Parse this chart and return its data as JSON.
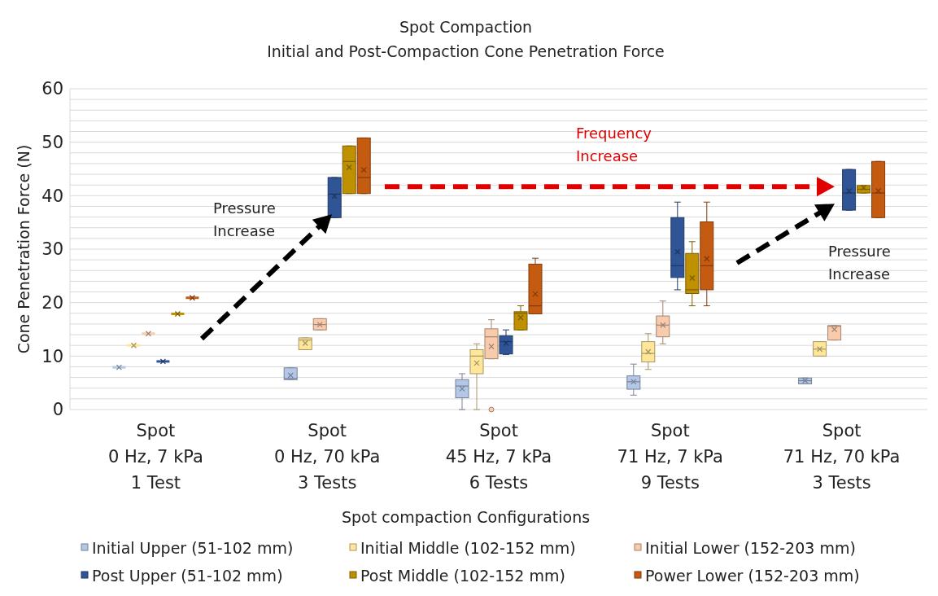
{
  "chart_data": {
    "type": "box",
    "title": "Spot Compaction",
    "subtitle": "Initial and Post-Compaction Cone Penetration Force",
    "xlabel": "Spot compaction Configurations",
    "ylabel": "Cone Penetration Force (N)",
    "categories": [
      "Spot\n0 Hz, 7 kPa\n1 Test",
      "Spot\n0 Hz, 70 kPa\n3 Tests",
      "Spot\n45 Hz, 7 kPa\n6 Tests",
      "Spot\n71 Hz, 7 kPa\n9 Tests",
      "Spot\n71 Hz, 70 kPa\n3 Tests"
    ],
    "ylim": [
      0,
      60
    ],
    "yticks": [
      0,
      {
        "value": 2,
        "label": null
      },
      {
        "value": 4,
        "label": null
      },
      {
        "value": 6,
        "label": null
      },
      {
        "value": 8,
        "label": null
      },
      10,
      {
        "value": 12,
        "label": null
      },
      {
        "value": 14,
        "label": null
      },
      {
        "value": 16,
        "label": null
      },
      {
        "value": 18,
        "label": null
      },
      20,
      {
        "value": 22,
        "label": null
      },
      {
        "value": 24,
        "label": null
      },
      {
        "value": 26,
        "label": null
      },
      {
        "value": 28,
        "label": null
      },
      30,
      {
        "value": 32,
        "label": null
      },
      {
        "value": 34,
        "label": null
      },
      {
        "value": 36,
        "label": null
      },
      {
        "value": 38,
        "label": null
      },
      40,
      {
        "value": 42,
        "label": null
      },
      {
        "value": 44,
        "label": null
      },
      {
        "value": 46,
        "label": null
      },
      {
        "value": 48,
        "label": null
      },
      50,
      {
        "value": 52,
        "label": null
      },
      {
        "value": 54,
        "label": null
      },
      {
        "value": 56,
        "label": null
      },
      {
        "value": 58,
        "label": null
      },
      60
    ],
    "grid": "y",
    "legend": "bottom",
    "annotations": [
      "Pressure Increase",
      "Frequency Increase",
      "Pressure Increase"
    ],
    "series": [
      {
        "name": "Initial Upper (51-102 mm)",
        "color": "#b4c7e7",
        "boxes": [
          {
            "low": 7.9,
            "q1": 7.9,
            "median": 7.9,
            "q3": 7.9,
            "high": 7.9,
            "mean": 7.9
          },
          {
            "low": 5.6,
            "q1": 5.6,
            "median": 5.8,
            "q3": 7.8,
            "high": 7.8,
            "mean": 6.4
          },
          {
            "low": 0,
            "q1": 2.2,
            "median": 4.4,
            "q3": 5.6,
            "high": 6.7,
            "mean": 3.9
          },
          {
            "low": 2.7,
            "q1": 3.8,
            "median": 5.2,
            "q3": 6.3,
            "high": 8.5,
            "mean": 5.2
          },
          {
            "low": 4.8,
            "q1": 4.8,
            "median": 5.4,
            "q3": 5.9,
            "high": 5.9,
            "mean": 5.4
          }
        ]
      },
      {
        "name": "Initial Middle (102-152 mm)",
        "color": "#ffe699",
        "boxes": [
          {
            "low": 12,
            "q1": 12,
            "median": 12,
            "q3": 12,
            "high": 12,
            "mean": 12
          },
          {
            "low": 11.2,
            "q1": 11.2,
            "median": 13,
            "q3": 13.4,
            "high": 13.4,
            "mean": 12.4
          },
          {
            "low": 0,
            "q1": 6.7,
            "median": 10,
            "q3": 11.2,
            "high": 12.3,
            "mean": 8.7
          },
          {
            "low": 7.5,
            "q1": 8.9,
            "median": 10.5,
            "q3": 12.7,
            "high": 14.2,
            "mean": 10.8
          },
          {
            "low": 10,
            "q1": 10,
            "median": 11.3,
            "q3": 12.7,
            "high": 12.7,
            "mean": 11.3
          }
        ]
      },
      {
        "name": "Initial Lower (152-203 mm)",
        "color": "#f8cbad",
        "boxes": [
          {
            "low": 14.2,
            "q1": 14.2,
            "median": 14.2,
            "q3": 14.2,
            "high": 14.2,
            "mean": 14.2
          },
          {
            "low": 14.9,
            "q1": 14.9,
            "median": 15.9,
            "q3": 17,
            "high": 17,
            "mean": 15.9
          },
          {
            "low": 9.5,
            "q1": 9.5,
            "median": 13.6,
            "q3": 15.1,
            "high": 16.8,
            "mean": 11.8,
            "outliers": [
              0
            ]
          },
          {
            "low": 12.3,
            "q1": 13.6,
            "median": 15.8,
            "q3": 17.5,
            "high": 20.3,
            "mean": 15.8
          },
          {
            "low": 13,
            "q1": 13,
            "median": 15.6,
            "q3": 15.7,
            "high": 15.7,
            "mean": 15
          }
        ]
      },
      {
        "name": "Post Upper (51-102 mm)",
        "color": "#2f5597",
        "boxes": [
          {
            "low": 9,
            "q1": 9,
            "median": 9,
            "q3": 9,
            "high": 9,
            "mean": 9
          },
          {
            "low": 35.9,
            "q1": 35.9,
            "median": 40.3,
            "q3": 43.4,
            "high": 43.4,
            "mean": 39.9
          },
          {
            "low": 10.3,
            "q1": 10.4,
            "median": 12.7,
            "q3": 13.8,
            "high": 14.9,
            "mean": 12.4
          },
          {
            "low": 22.4,
            "q1": 24.7,
            "median": 26.9,
            "q3": 35.9,
            "high": 38.8,
            "mean": 29.5
          },
          {
            "low": 37.3,
            "q1": 37.3,
            "median": 40.5,
            "q3": 44.9,
            "high": 44.9,
            "mean": 40.9
          }
        ]
      },
      {
        "name": "Post Middle (102-152 mm)",
        "color": "#bf9000",
        "boxes": [
          {
            "low": 17.9,
            "q1": 17.9,
            "median": 17.9,
            "q3": 17.9,
            "high": 17.9,
            "mean": 17.9
          },
          {
            "low": 40.4,
            "q1": 40.4,
            "median": 46.4,
            "q3": 49.3,
            "high": 49.3,
            "mean": 45.3
          },
          {
            "low": 14.9,
            "q1": 14.9,
            "median": 18,
            "q3": 18.3,
            "high": 19.4,
            "mean": 17.2
          },
          {
            "low": 19.4,
            "q1": 21.7,
            "median": 22.4,
            "q3": 29.2,
            "high": 31.4,
            "mean": 24.6
          },
          {
            "low": 40.5,
            "q1": 40.5,
            "median": 41.2,
            "q3": 41.9,
            "high": 41.9,
            "mean": 41.5
          }
        ]
      },
      {
        "name": "Power Lower (152-203 mm)",
        "color": "#c55a11",
        "boxes": [
          {
            "low": 20.9,
            "q1": 20.9,
            "median": 20.9,
            "q3": 20.9,
            "high": 20.9,
            "mean": 20.9
          },
          {
            "low": 40.4,
            "q1": 40.4,
            "median": 43.4,
            "q3": 50.8,
            "high": 50.8,
            "mean": 44.8
          },
          {
            "low": 17.9,
            "q1": 17.9,
            "median": 19.4,
            "q3": 27.2,
            "high": 28.3,
            "mean": 21.6
          },
          {
            "low": 19.4,
            "q1": 22.4,
            "median": 26.9,
            "q3": 35.1,
            "high": 38.8,
            "mean": 28.2
          },
          {
            "low": 35.9,
            "q1": 35.9,
            "median": 40.5,
            "q3": 46.4,
            "high": 46.4,
            "mean": 40.9
          }
        ]
      }
    ]
  }
}
